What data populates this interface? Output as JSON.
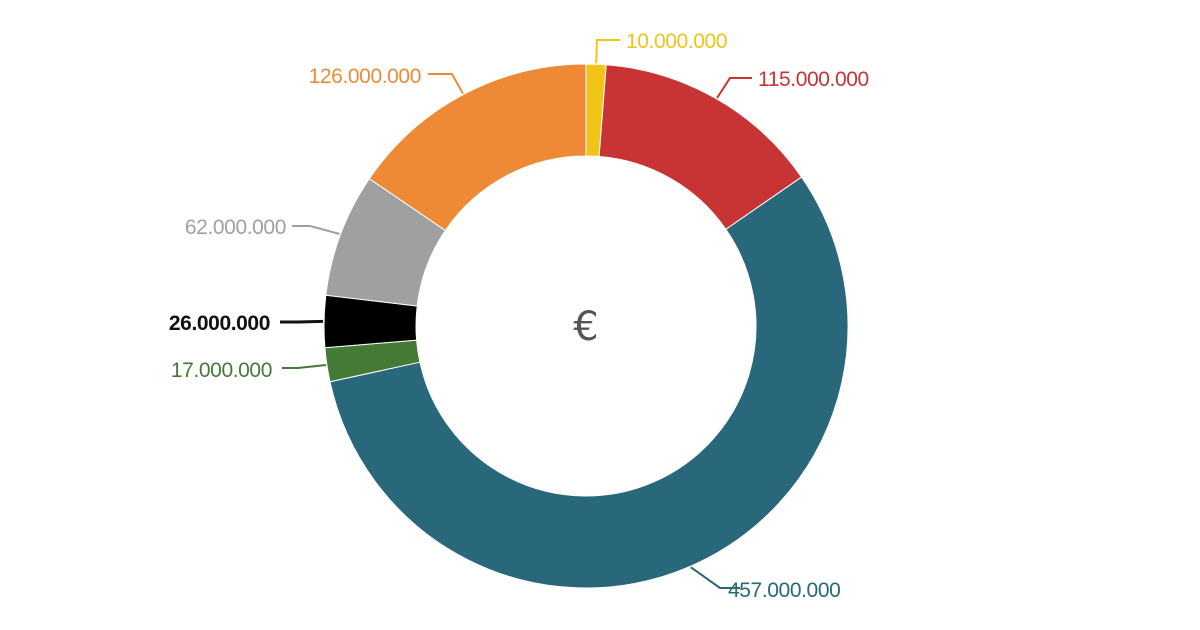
{
  "chart_data": {
    "type": "pie",
    "variant": "donut",
    "center_label": "€",
    "slices": [
      {
        "label": "10.000.000",
        "value": 10000000,
        "color": "#F2C418"
      },
      {
        "label": "115.000.000",
        "value": 115000000,
        "color": "#C73433"
      },
      {
        "label": "457.000.000",
        "value": 457000000,
        "color": "#28687A"
      },
      {
        "label": "17.000.000",
        "value": 17000000,
        "color": "#457A36"
      },
      {
        "label": "26.000.000",
        "value": 26000000,
        "color": "#000000"
      },
      {
        "label": "62.000.000",
        "value": 62000000,
        "color": "#A0A0A0"
      },
      {
        "label": "126.000.000",
        "value": 126000000,
        "color": "#EE8A36"
      }
    ],
    "label_colors": [
      "#F2C418",
      "#C73433",
      "#28687A",
      "#457A36",
      "#111111",
      "#A0A0A0",
      "#EE8A36"
    ]
  }
}
